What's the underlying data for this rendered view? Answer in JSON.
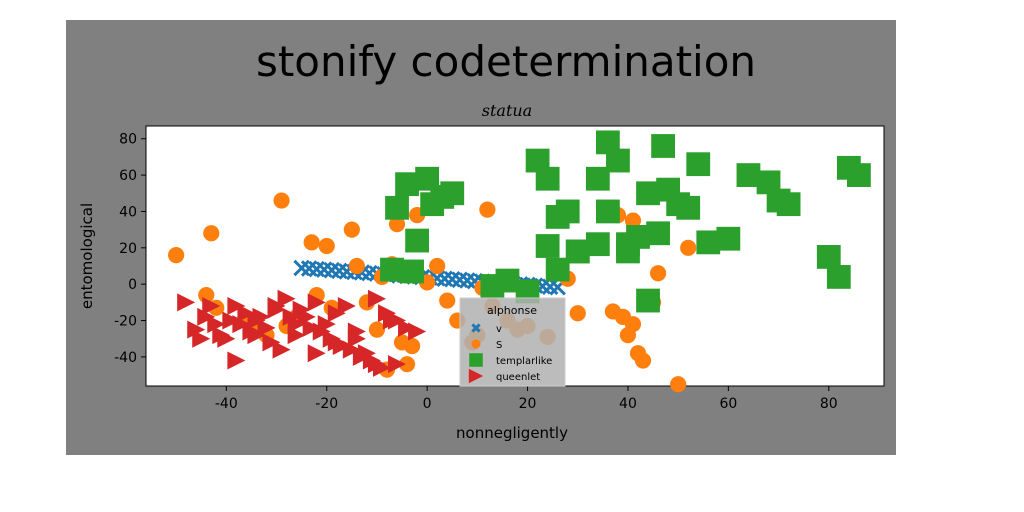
{
  "figure": {
    "suptitle": "stonify codetermination",
    "title": "statua",
    "background": "#808080"
  },
  "chart_data": {
    "type": "scatter",
    "title": "statua",
    "xlabel": "nonnegligently",
    "ylabel": "entomological",
    "xlim": [
      -56,
      91
    ],
    "ylim": [
      -56,
      87
    ],
    "xticks": [
      -40,
      -20,
      0,
      20,
      40,
      60,
      80
    ],
    "yticks": [
      -40,
      -20,
      0,
      20,
      40,
      60,
      80
    ],
    "grid": false,
    "legend": {
      "title": "alphonse",
      "position": "lower-center"
    },
    "series": [
      {
        "name": "v",
        "marker": "x",
        "color": "#1f77b4",
        "x": [
          -25,
          -23.5,
          -22,
          -20.5,
          -19,
          -17.5,
          -16,
          -14.5,
          -13,
          -11.5,
          -10,
          -8.5,
          -7,
          -5.5,
          -4,
          -2.5,
          -1,
          0.5,
          2,
          3.5,
          5,
          6.5,
          8,
          9.5,
          11,
          12.5,
          14,
          15.5,
          17,
          18.5,
          20,
          21.5,
          23,
          24.5,
          26
        ],
        "y": [
          8.9,
          8.6,
          8.3,
          8,
          7.7,
          7.3,
          7,
          6.7,
          6.4,
          6.1,
          5.8,
          5.5,
          5.2,
          4.8,
          4.5,
          4.2,
          3.9,
          3.6,
          3.3,
          3,
          2.7,
          2.4,
          2,
          1.7,
          1.4,
          1.1,
          0.8,
          0.5,
          0.2,
          -0.1,
          -0.4,
          -0.8,
          -1.1,
          -1.4,
          -1.7
        ]
      },
      {
        "name": "S",
        "marker": "o",
        "color": "#ff7f0e",
        "x": [
          -50,
          -43,
          -29,
          -44,
          -42,
          -36,
          -23,
          -28,
          -15,
          -20,
          -14,
          -19,
          -7,
          -12,
          -10,
          -9,
          -5,
          -8,
          -4,
          -6,
          -2,
          -3,
          0,
          6,
          9,
          2,
          4,
          12,
          13,
          16,
          10,
          11,
          14,
          18,
          20,
          24,
          26,
          28,
          30,
          37,
          39,
          41,
          40,
          42,
          43,
          45,
          46,
          52,
          50,
          38,
          41,
          -35,
          -32,
          -26,
          -22
        ],
        "y": [
          16,
          28,
          46,
          -6,
          -13,
          -20,
          23,
          -23,
          30,
          21,
          10,
          -13,
          11,
          -10,
          -25,
          4,
          -32,
          -47,
          -44,
          33,
          38,
          -34,
          1,
          -20,
          -32,
          10,
          -9,
          41,
          -12,
          -20,
          -28,
          -2,
          1,
          -25,
          -23,
          -29,
          10,
          3,
          -16,
          -15,
          -18,
          -22,
          -28,
          -38,
          -42,
          -10,
          6,
          20,
          -55,
          38,
          35,
          -25,
          -28,
          -18,
          -6
        ]
      },
      {
        "name": "templarlike",
        "marker": "s",
        "color": "#2ca02c",
        "x": [
          -6,
          -4,
          -2,
          0,
          1,
          3,
          5,
          22,
          24,
          26,
          28,
          30,
          34,
          36,
          38,
          40,
          42,
          44,
          46,
          47,
          48,
          50,
          52,
          54,
          56,
          60,
          64,
          68,
          70,
          72,
          80,
          82,
          84,
          86,
          36,
          40,
          34,
          24,
          26,
          -3,
          16,
          30,
          -7,
          13,
          20,
          44
        ],
        "y": [
          42,
          55,
          24,
          58,
          44,
          48,
          50,
          68,
          58,
          37,
          40,
          18,
          58,
          78,
          68,
          22,
          26,
          50,
          28,
          76,
          52,
          44,
          42,
          66,
          23,
          25,
          60,
          56,
          46,
          44,
          15,
          4,
          64,
          60,
          40,
          18,
          22,
          21,
          8,
          7,
          2,
          18,
          8,
          -1,
          -4,
          -9
        ]
      },
      {
        "name": "queenlet",
        "marker": ">",
        "color": "#d62728",
        "x": [
          -48,
          -46,
          -44,
          -42,
          -40,
          -38,
          -36,
          -34,
          -32,
          -30,
          -28,
          -26,
          -24,
          -22,
          -20,
          -18,
          -16,
          -14,
          -12,
          -10,
          -8,
          -6,
          -4,
          -45,
          -41,
          -37,
          -33,
          -29,
          -25,
          -21,
          -17,
          -13,
          -9,
          -43,
          -39,
          -35,
          -31,
          -27,
          -23,
          -19,
          -15,
          -11,
          -7,
          -38,
          -34,
          -30,
          -26,
          -22,
          -18,
          -14,
          -10,
          -6,
          -2
        ],
        "y": [
          -10,
          -25,
          -18,
          -22,
          -30,
          -12,
          -16,
          -20,
          -24,
          -14,
          -8,
          -28,
          -18,
          -10,
          -22,
          -32,
          -12,
          -26,
          -38,
          -8,
          -16,
          -44,
          -24,
          -30,
          -28,
          -22,
          -18,
          -36,
          -14,
          -26,
          -34,
          -40,
          -46,
          -12,
          -20,
          -26,
          -32,
          -18,
          -24,
          -30,
          -36,
          -42,
          -20,
          -42,
          -28,
          -12,
          -22,
          -38,
          -16,
          -30,
          -44,
          -20,
          -26
        ]
      }
    ]
  }
}
